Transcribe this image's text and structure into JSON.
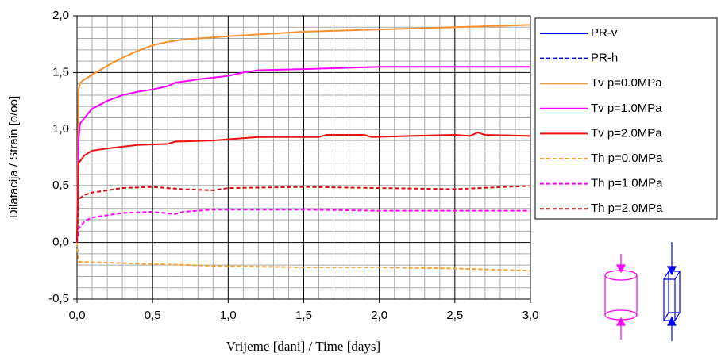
{
  "chart_data": {
    "type": "line",
    "xlabel": "Vrijeme [dani] / Time [days]",
    "ylabel": "Dilatacija / Strain [o/oo]",
    "xlim": [
      0,
      3
    ],
    "ylim": [
      -0.5,
      2
    ],
    "xticks": [
      {
        "value": 0,
        "label": "0,0"
      },
      {
        "value": 0.5,
        "label": "0,5"
      },
      {
        "value": 1,
        "label": "1,0"
      },
      {
        "value": 1.5,
        "label": "1,5"
      },
      {
        "value": 2,
        "label": "2,0"
      },
      {
        "value": 2.5,
        "label": "2,5"
      },
      {
        "value": 3,
        "label": "3,0"
      }
    ],
    "yticks": [
      {
        "value": -0.5,
        "label": "-0,5"
      },
      {
        "value": 0,
        "label": "0,0"
      },
      {
        "value": 0.5,
        "label": "0,5"
      },
      {
        "value": 1,
        "label": "1,0"
      },
      {
        "value": 1.5,
        "label": "1,5"
      },
      {
        "value": 2,
        "label": "2,0"
      }
    ],
    "xminorticks": [
      0.1,
      0.2,
      0.3,
      0.4,
      0.6,
      0.7,
      0.8,
      0.9,
      1.1,
      1.2,
      1.3,
      1.4,
      1.6,
      1.7,
      1.8,
      1.9,
      2.1,
      2.2,
      2.3,
      2.4,
      2.6,
      2.7,
      2.8,
      2.9
    ],
    "yminorticks": [
      -0.4,
      -0.3,
      -0.2,
      -0.1,
      0.1,
      0.2,
      0.3,
      0.4,
      0.6,
      0.7,
      0.8,
      0.9,
      1.1,
      1.2,
      1.3,
      1.4,
      1.6,
      1.7,
      1.8,
      1.9
    ],
    "grid": true,
    "legend": "right",
    "series": [
      {
        "name": "PR-v",
        "color": "#0000ff",
        "dash": false,
        "x": [],
        "values": []
      },
      {
        "name": "PR-h",
        "color": "#0000ff",
        "dash": true,
        "x": [],
        "values": []
      },
      {
        "name": "Tv p=0.0MPa",
        "color": "#f7902e",
        "dash": false,
        "x": [
          0,
          0.01,
          0.02,
          0.03,
          0.05,
          0.1,
          0.2,
          0.3,
          0.4,
          0.5,
          0.6,
          0.7,
          1.0,
          1.5,
          2.0,
          2.5,
          3.0
        ],
        "values": [
          0,
          1.35,
          1.4,
          1.42,
          1.44,
          1.48,
          1.56,
          1.63,
          1.69,
          1.74,
          1.77,
          1.79,
          1.82,
          1.86,
          1.88,
          1.9,
          1.92
        ]
      },
      {
        "name": "Tv p=1.0MPa",
        "color": "#ff00ff",
        "dash": false,
        "x": [
          0,
          0.01,
          0.02,
          0.05,
          0.1,
          0.2,
          0.3,
          0.4,
          0.5,
          0.6,
          0.65,
          0.8,
          1.0,
          1.1,
          1.2,
          1.5,
          2.0,
          2.5,
          3.0
        ],
        "values": [
          0,
          0.9,
          1.05,
          1.1,
          1.18,
          1.25,
          1.3,
          1.33,
          1.35,
          1.38,
          1.41,
          1.44,
          1.47,
          1.5,
          1.52,
          1.53,
          1.55,
          1.55,
          1.55
        ]
      },
      {
        "name": "Tv p=2.0MPa",
        "color": "#ee1111",
        "dash": false,
        "x": [
          0,
          0.01,
          0.05,
          0.1,
          0.2,
          0.4,
          0.6,
          0.65,
          0.9,
          1.0,
          1.2,
          1.6,
          1.65,
          1.9,
          1.95,
          2.2,
          2.5,
          2.6,
          2.65,
          2.7,
          3.0
        ],
        "values": [
          0,
          0.7,
          0.77,
          0.81,
          0.83,
          0.86,
          0.87,
          0.89,
          0.9,
          0.91,
          0.93,
          0.93,
          0.95,
          0.95,
          0.93,
          0.94,
          0.95,
          0.94,
          0.97,
          0.95,
          0.94
        ]
      },
      {
        "name": "Th p=0.0MPa",
        "color": "#f7a030",
        "dash": true,
        "x": [
          0,
          0.01,
          0.5,
          1.0,
          1.5,
          2.0,
          2.5,
          3.0
        ],
        "values": [
          0,
          -0.17,
          -0.19,
          -0.21,
          -0.22,
          -0.22,
          -0.23,
          -0.25
        ]
      },
      {
        "name": "Th p=1.0MPa",
        "color": "#ff00ff",
        "dash": true,
        "x": [
          0,
          0.01,
          0.03,
          0.05,
          0.1,
          0.3,
          0.5,
          0.65,
          0.7,
          0.9,
          1.5,
          2.0,
          3.0
        ],
        "values": [
          0,
          0.12,
          0.15,
          0.19,
          0.22,
          0.26,
          0.27,
          0.25,
          0.27,
          0.29,
          0.29,
          0.28,
          0.28
        ]
      },
      {
        "name": "Th p=2.0MPa",
        "color": "#cc1111",
        "dash": true,
        "x": [
          0,
          0.01,
          0.05,
          0.1,
          0.3,
          0.5,
          0.7,
          0.9,
          1.0,
          1.5,
          2.0,
          2.5,
          3.0
        ],
        "values": [
          0,
          0.38,
          0.42,
          0.44,
          0.48,
          0.49,
          0.47,
          0.46,
          0.48,
          0.49,
          0.48,
          0.47,
          0.5
        ]
      }
    ]
  }
}
